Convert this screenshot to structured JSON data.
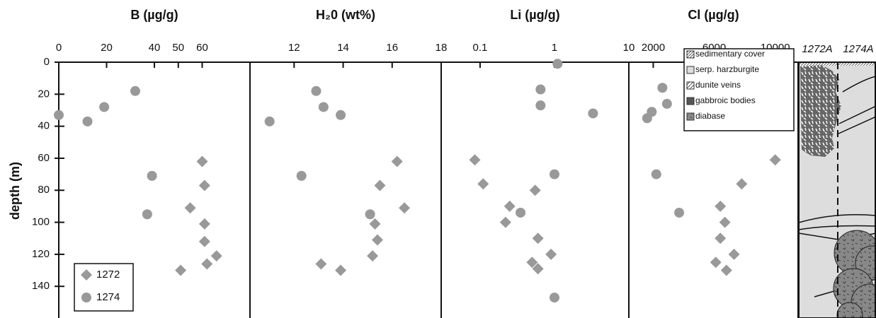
{
  "chart_data": {
    "type": "scatter",
    "ylabel": "depth (m)",
    "ylim": [
      0,
      158
    ],
    "yticks": [
      0,
      20,
      40,
      60,
      80,
      100,
      120,
      140
    ],
    "y_inverted": true,
    "legend": "lower left",
    "series": [
      {
        "name": "1272",
        "color": "#999999",
        "marker": "diamond"
      },
      {
        "name": "1274",
        "color": "#999999",
        "marker": "circle"
      }
    ],
    "panels": [
      {
        "title": "B (µg/g)",
        "xscale": "linear",
        "xlim": [
          0,
          80
        ],
        "xticks": [
          0,
          20,
          40,
          50,
          60
        ],
        "data": [
          {
            "x": [
              60,
              61,
              55,
              61,
              61,
              66,
              62,
              51
            ],
            "y": [
              62,
              77,
              91,
              101,
              112,
              121,
              126,
              130
            ]
          },
          {
            "x": [
              32,
              19,
              0,
              12,
              39,
              37
            ],
            "y": [
              18,
              28,
              33,
              37,
              71,
              95
            ]
          }
        ]
      },
      {
        "title": "H₂0 (wt%)",
        "xscale": "linear",
        "xlim": [
          10.2,
          18
        ],
        "xticks": [
          12,
          14,
          16,
          18
        ],
        "data": [
          {
            "x": [
              16.2,
              15.5,
              16.5,
              15.3,
              15.4,
              15.2,
              13.1,
              13.9
            ],
            "y": [
              62,
              77,
              91,
              101,
              111,
              121,
              126,
              130
            ]
          },
          {
            "x": [
              12.9,
              13.2,
              13.9,
              11.0,
              12.3,
              15.1
            ],
            "y": [
              18,
              28,
              33,
              37,
              71,
              95
            ]
          }
        ]
      },
      {
        "title": "Li (µg/g)",
        "xscale": "log",
        "xlim": [
          0.03,
          10
        ],
        "xticks": [
          0.1,
          1,
          10
        ],
        "data": [
          {
            "x": [
              0.085,
              0.11,
              0.55,
              0.25,
              0.22,
              0.6,
              0.9,
              0.5,
              0.6
            ],
            "y": [
              61,
              76,
              80,
              90,
              100,
              110,
              120,
              125,
              129
            ]
          },
          {
            "x": [
              1.1,
              0.65,
              0.65,
              3.3,
              1.0,
              0.35,
              1.0
            ],
            "y": [
              1,
              17,
              27,
              32,
              70,
              94,
              147
            ]
          }
        ]
      },
      {
        "title": "Cl (µg/g)",
        "xscale": "linear",
        "xlim": [
          400,
          11500
        ],
        "xticks": [
          2000,
          6000,
          10000
        ],
        "data": [
          {
            "x": [
              10000,
              7800,
              6400,
              6700,
              6400,
              7300,
              6100,
              6800
            ],
            "y": [
              61,
              76,
              90,
              100,
              110,
              120,
              125,
              130
            ]
          },
          {
            "x": [
              2600,
              2900,
              1900,
              1600,
              2200,
              3700
            ],
            "y": [
              16,
              26,
              31,
              35,
              70,
              94
            ]
          }
        ]
      }
    ]
  },
  "lithology": {
    "holes": [
      "1272A",
      "1274A"
    ],
    "legend": [
      "sedimentary cover",
      "serp. harzburgite",
      "dunite veins",
      "gabbroic bodies",
      "diabase"
    ]
  }
}
